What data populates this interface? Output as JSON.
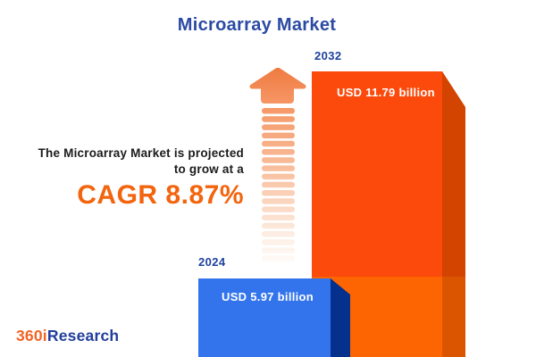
{
  "title": "Microarray Market",
  "tagline": {
    "line1": "The Microarray Market is projected",
    "line2": "to grow at a",
    "cagr": "CAGR 8.87%"
  },
  "bars": [
    {
      "year": "2024",
      "value_label": "USD 5.97 billion"
    },
    {
      "year": "2032",
      "value_label": "USD 11.79 billion"
    }
  ],
  "logo": {
    "prefix": "360i",
    "suffix": "Research"
  },
  "colors": {
    "title_blue": "#2B4AA3",
    "year_label_blue": "#1E419E",
    "cagr_orange": "#F3640E",
    "bar_blue_face": "#3374EC",
    "bar_blue_side": "#05308C",
    "bar_orange_face_upper": "#FB4A0C",
    "bar_orange_face_lower": "#FD6502",
    "bar_orange_side_upper": "#D24400",
    "bar_orange_side_lower": "#DB5400",
    "arrow_orange": "#EF7B41",
    "logo_orange": "#F26425",
    "logo_blue": "#213E9B"
  },
  "chart_data": {
    "type": "bar",
    "title": "Microarray Market",
    "categories": [
      "2024",
      "2032"
    ],
    "values": [
      5.97,
      11.79
    ],
    "unit": "USD billion",
    "value_labels": [
      "USD 5.97 billion",
      "USD 11.79 billion"
    ],
    "series": [
      {
        "name": "Microarray Market size",
        "values": [
          5.97,
          11.79
        ]
      }
    ],
    "annotation": "The Microarray Market is projected to grow at a CAGR 8.87%",
    "cagr_percent": 8.87,
    "xlabel": "",
    "ylabel": "",
    "legend": "none",
    "grid": false,
    "style": "pictorial 3D bars, no axes"
  }
}
